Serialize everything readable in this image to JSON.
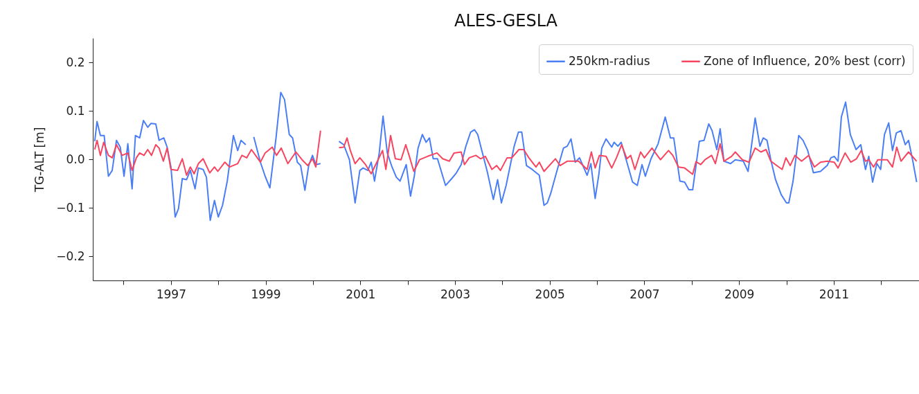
{
  "chart_data": {
    "type": "line",
    "title": "ALES-GESLA",
    "ylabel": "TG-ALT [m]",
    "xlim": [
      1995.35,
      2012.8
    ],
    "ylim": [
      -0.25,
      0.25
    ],
    "xticks": [
      {
        "value": 1996,
        "label": null
      },
      1997,
      {
        "value": 1998,
        "label": null
      },
      1999,
      {
        "value": 2000,
        "label": null
      },
      2001,
      {
        "value": 2002,
        "label": null
      },
      2003,
      {
        "value": 2004,
        "label": null
      },
      2005,
      {
        "value": 2006,
        "label": null
      },
      2007,
      {
        "value": 2008,
        "label": null
      },
      2009,
      {
        "value": 2010,
        "label": null
      },
      2011,
      {
        "value": 2012,
        "label": null
      }
    ],
    "yticks": [
      {
        "value": -0.2,
        "label": "−0.2"
      },
      {
        "value": -0.1,
        "label": "−0.1"
      },
      {
        "value": 0,
        "label": "0.0"
      },
      {
        "value": 0.1,
        "label": "0.1"
      },
      {
        "value": 0.2,
        "label": "0.2"
      }
    ],
    "grid": false,
    "legend": "top right",
    "line_style": "solid",
    "series": [
      {
        "name": "250km-radius",
        "color": "#4a7ef5",
        "x": [
          1995.39,
          1995.44,
          1995.51,
          1995.59,
          1995.68,
          1995.76,
          1995.85,
          1995.93,
          1996.01,
          1996.09,
          1996.18,
          1996.25,
          1996.34,
          1996.42,
          1996.51,
          1996.58,
          1996.68,
          1996.75,
          1996.85,
          1996.92,
          1997.0,
          1997.09,
          1997.16,
          1997.24,
          1997.33,
          1997.41,
          1997.51,
          1997.58,
          1997.68,
          1997.75,
          1997.83,
          1997.92,
          1998.0,
          1998.09,
          1998.19,
          1998.32,
          1998.41,
          1998.48,
          1998.58,
          1998.66,
          1998.75,
          1998.89,
          1998.99,
          1999.09,
          1999.22,
          1999.32,
          1999.4,
          1999.5,
          1999.57,
          1999.67,
          1999.74,
          1999.83,
          1999.91,
          1999.99,
          2000.06,
          2000.16,
          2000.35,
          2000.55,
          2000.65,
          2000.77,
          2000.89,
          2000.99,
          2001.06,
          2001.16,
          2001.23,
          2001.3,
          2001.4,
          2001.48,
          2001.57,
          2001.67,
          2001.76,
          2001.84,
          2001.97,
          2002.06,
          2002.14,
          2002.22,
          2002.31,
          2002.39,
          2002.46,
          2002.54,
          2002.63,
          2002.8,
          2002.93,
          2003.03,
          2003.13,
          2003.23,
          2003.33,
          2003.41,
          2003.48,
          2003.58,
          2003.68,
          2003.81,
          2003.9,
          2003.98,
          2004.08,
          2004.17,
          2004.25,
          2004.34,
          2004.41,
          2004.51,
          2004.63,
          2004.78,
          2004.88,
          2004.95,
          2005.02,
          2005.15,
          2005.29,
          2005.37,
          2005.45,
          2005.54,
          2005.63,
          2005.79,
          2005.87,
          2005.96,
          2006.04,
          2006.1,
          2006.19,
          2006.31,
          2006.36,
          2006.44,
          2006.51,
          2006.63,
          2006.75,
          2006.85,
          2006.95,
          2007.02,
          2007.14,
          2007.29,
          2007.44,
          2007.55,
          2007.62,
          2007.75,
          2007.85,
          2007.94,
          2008.02,
          2008.16,
          2008.26,
          2008.36,
          2008.43,
          2008.53,
          2008.6,
          2008.68,
          2008.82,
          2008.92,
          2009.09,
          2009.19,
          2009.34,
          2009.44,
          2009.51,
          2009.59,
          2009.67,
          2009.77,
          2009.89,
          2010.0,
          2010.05,
          2010.14,
          2010.26,
          2010.35,
          2010.45,
          2010.57,
          2010.72,
          2010.86,
          2010.94,
          2011.01,
          2011.09,
          2011.16,
          2011.25,
          2011.35,
          2011.47,
          2011.57,
          2011.67,
          2011.74,
          2011.82,
          2011.91,
          2011.99,
          2012.07,
          2012.16,
          2012.24,
          2012.32,
          2012.42,
          2012.51,
          2012.58,
          2012.67,
          2012.75
        ],
        "values": [
          0.037,
          0.078,
          0.049,
          0.049,
          -0.035,
          -0.023,
          0.039,
          0.025,
          -0.035,
          0.032,
          -0.061,
          0.049,
          0.044,
          0.08,
          0.066,
          0.074,
          0.073,
          0.039,
          0.044,
          0.025,
          -0.016,
          -0.119,
          -0.102,
          -0.04,
          -0.042,
          -0.023,
          -0.061,
          -0.018,
          -0.021,
          -0.037,
          -0.126,
          -0.085,
          -0.119,
          -0.095,
          -0.045,
          0.049,
          0.018,
          0.039,
          0.03,
          null,
          0.046,
          -0.006,
          -0.035,
          -0.059,
          0.044,
          0.138,
          0.123,
          0.051,
          0.044,
          -0.006,
          -0.013,
          -0.064,
          -0.013,
          0.008,
          -0.011,
          -0.009,
          null,
          0.037,
          0.03,
          -0.001,
          -0.09,
          -0.023,
          -0.018,
          -0.023,
          -0.006,
          -0.045,
          0.013,
          0.089,
          0.013,
          -0.016,
          -0.037,
          -0.045,
          -0.011,
          -0.076,
          -0.035,
          0.023,
          0.051,
          0.035,
          0.044,
          0.001,
          0.001,
          -0.054,
          -0.04,
          -0.028,
          -0.011,
          0.027,
          0.056,
          0.061,
          0.051,
          0.013,
          -0.025,
          -0.083,
          -0.042,
          -0.09,
          -0.054,
          -0.011,
          0.027,
          0.056,
          0.056,
          -0.013,
          -0.021,
          -0.033,
          -0.095,
          -0.09,
          -0.071,
          -0.025,
          0.023,
          0.027,
          0.042,
          -0.006,
          0.003,
          -0.033,
          -0.009,
          -0.081,
          -0.03,
          0.023,
          0.042,
          0.025,
          0.035,
          0.027,
          0.035,
          -0.006,
          -0.047,
          -0.054,
          -0.011,
          -0.035,
          0.001,
          0.032,
          0.087,
          0.044,
          0.044,
          -0.045,
          -0.047,
          -0.063,
          -0.063,
          0.037,
          0.039,
          0.073,
          0.059,
          0.02,
          0.063,
          -0.004,
          -0.009,
          -0.001,
          -0.004,
          -0.025,
          0.085,
          0.027,
          0.044,
          0.039,
          -0.001,
          -0.042,
          -0.073,
          -0.09,
          -0.09,
          -0.045,
          0.049,
          0.039,
          0.018,
          -0.028,
          -0.025,
          -0.013,
          0.003,
          0.006,
          -0.004,
          0.087,
          0.118,
          0.051,
          0.02,
          0.03,
          -0.021,
          0.006,
          -0.047,
          -0.009,
          -0.021,
          0.051,
          0.075,
          0.018,
          0.054,
          0.059,
          0.03,
          0.039,
          -0.004,
          -0.047
        ]
      },
      {
        "name": "Zone of Influence, 20% best (corr)",
        "color": "#f7445f",
        "x": [
          1995.39,
          1995.44,
          1995.51,
          1995.58,
          1995.68,
          1995.76,
          1995.85,
          1995.97,
          1996.09,
          1996.18,
          1996.27,
          1996.34,
          1996.43,
          1996.51,
          1996.59,
          1996.68,
          1996.75,
          1996.84,
          1996.92,
          1997.0,
          1997.14,
          1997.24,
          1997.33,
          1997.41,
          1997.49,
          1997.58,
          1997.68,
          1997.82,
          1997.92,
          1997.99,
          1998.14,
          1998.24,
          1998.41,
          1998.5,
          1998.6,
          1998.7,
          1998.89,
          1998.99,
          1999.14,
          1999.23,
          1999.33,
          1999.47,
          1999.64,
          1999.77,
          1999.89,
          1999.99,
          2000.06,
          2000.16,
          2000.35,
          2000.55,
          2000.65,
          2000.72,
          2000.79,
          2000.89,
          2000.99,
          2001.11,
          2001.23,
          2001.35,
          2001.47,
          2001.54,
          2001.64,
          2001.74,
          2001.86,
          2001.96,
          2002.03,
          2002.13,
          2002.25,
          2002.42,
          2002.62,
          2002.74,
          2002.88,
          2002.98,
          2003.13,
          2003.2,
          2003.3,
          2003.44,
          2003.54,
          2003.64,
          2003.78,
          2003.88,
          2003.96,
          2004.1,
          2004.2,
          2004.35,
          2004.45,
          2004.56,
          2004.71,
          2004.78,
          2004.88,
          2005.12,
          2005.22,
          2005.37,
          2005.61,
          2005.79,
          2005.88,
          2005.96,
          2006.05,
          2006.19,
          2006.31,
          2006.41,
          2006.52,
          2006.63,
          2006.71,
          2006.8,
          2006.92,
          2007.0,
          2007.16,
          2007.34,
          2007.51,
          2007.6,
          2007.72,
          2007.85,
          2008.02,
          2008.09,
          2008.19,
          2008.28,
          2008.42,
          2008.5,
          2008.6,
          2008.68,
          2008.84,
          2008.92,
          2009.07,
          2009.21,
          2009.34,
          2009.46,
          2009.57,
          2009.67,
          2009.91,
          2009.99,
          2010.08,
          2010.18,
          2010.32,
          2010.47,
          2010.59,
          2010.72,
          2010.86,
          2011.01,
          2011.09,
          2011.24,
          2011.36,
          2011.48,
          2011.58,
          2011.67,
          2011.74,
          2011.84,
          2011.93,
          2012.13,
          2012.24,
          2012.33,
          2012.42,
          2012.58,
          2012.75
        ],
        "values": [
          0.02,
          0.039,
          0.008,
          0.035,
          0.008,
          0.003,
          0.03,
          0.008,
          0.013,
          -0.023,
          0.003,
          0.013,
          0.008,
          0.02,
          0.008,
          0.03,
          0.023,
          -0.004,
          0.023,
          -0.021,
          -0.023,
          0.001,
          -0.033,
          -0.016,
          -0.03,
          -0.009,
          0.001,
          -0.028,
          -0.016,
          -0.025,
          -0.006,
          -0.016,
          -0.009,
          0.008,
          0.003,
          0.02,
          -0.006,
          0.013,
          0.025,
          0.008,
          0.023,
          -0.009,
          0.015,
          -0.001,
          -0.013,
          0.001,
          -0.016,
          0.059,
          null,
          0.024,
          0.025,
          0.044,
          0.018,
          -0.009,
          0.003,
          -0.011,
          -0.03,
          -0.006,
          0.018,
          -0.021,
          0.049,
          0.001,
          -0.001,
          0.03,
          0.008,
          -0.025,
          -0.001,
          0.006,
          0.013,
          0.001,
          -0.004,
          0.013,
          0.015,
          -0.011,
          0.003,
          0.008,
          0.001,
          0.006,
          -0.021,
          -0.013,
          -0.023,
          0.003,
          0.003,
          0.02,
          0.02,
          0.003,
          -0.016,
          -0.006,
          -0.025,
          0.001,
          -0.013,
          -0.004,
          -0.004,
          -0.021,
          0.015,
          -0.018,
          0.008,
          0.006,
          -0.018,
          0.003,
          0.03,
          0.001,
          0.008,
          -0.021,
          0.015,
          0.003,
          0.023,
          -0.001,
          0.018,
          0.008,
          -0.016,
          -0.018,
          -0.031,
          -0.005,
          -0.011,
          -0.001,
          0.008,
          -0.009,
          0.032,
          -0.004,
          0.006,
          0.015,
          -0.001,
          -0.006,
          0.023,
          0.015,
          0.02,
          -0.004,
          -0.021,
          0.003,
          -0.013,
          0.008,
          -0.004,
          0.008,
          -0.016,
          -0.006,
          -0.004,
          -0.006,
          -0.018,
          0.013,
          -0.006,
          0.001,
          0.018,
          -0.004,
          -0.001,
          -0.016,
          -0.001,
          -0.001,
          -0.016,
          0.025,
          -0.004,
          0.015,
          -0.004
        ]
      }
    ]
  }
}
